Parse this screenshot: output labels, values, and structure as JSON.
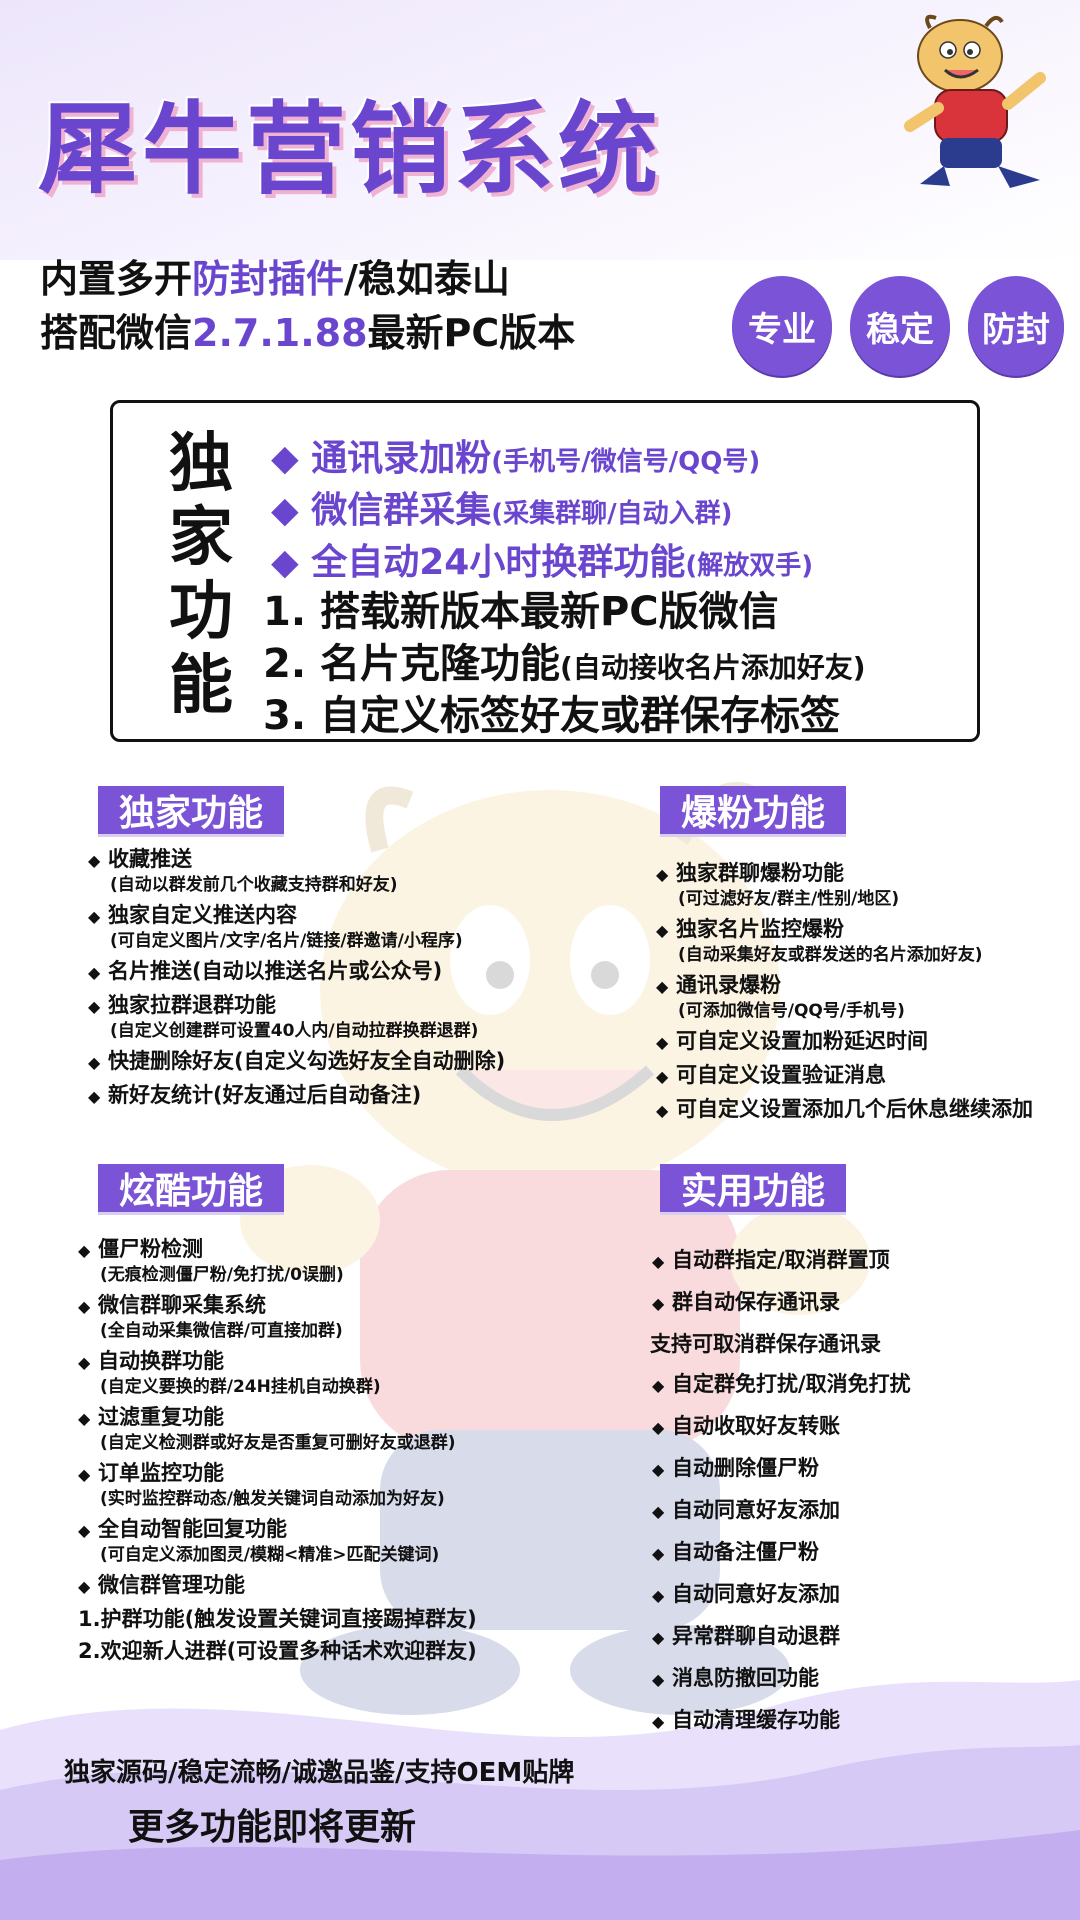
{
  "header": {
    "title": "犀牛营销系统",
    "line1_a": "内置多开",
    "line1_hl": "防封插件",
    "line1_b": "/稳如泰山",
    "line2_a": "搭配微信",
    "line2_hl": "2.7.1.88",
    "line2_b": "最新PC版本",
    "badges": [
      "专业",
      "稳定",
      "防封"
    ]
  },
  "exclusive_box": {
    "vertical_label": "独家功能",
    "purple_items": [
      {
        "main": "◆ 通讯录加粉",
        "note": "(手机号/微信号/QQ号)"
      },
      {
        "main": "◆ 微信群采集",
        "note": "(采集群聊/自动入群)"
      },
      {
        "main": "◆ 全自动24小时换群功能",
        "note": "(解放双手)"
      }
    ],
    "numbered_items": [
      {
        "main": "1. 搭载新版本最新PC版微信",
        "note": ""
      },
      {
        "main": "2. 名片克隆功能",
        "note": "(自动接收名片添加好友)"
      },
      {
        "main": "3. 自定义标签好友或群保存标签",
        "note": ""
      }
    ]
  },
  "sections": {
    "exclusive": {
      "title": "独家功能",
      "items": [
        {
          "main": "收藏推送",
          "note": "(自动以群发前几个收藏支持群和好友)"
        },
        {
          "main": "独家自定义推送内容",
          "note": "(可自定义图片/文字/名片/链接/群邀请/小程序)"
        },
        {
          "main": "名片推送(自动以推送名片或公众号)",
          "note": ""
        },
        {
          "main": "独家拉群退群功能",
          "note": "(自定义创建群可设置40人内/自动拉群换群退群)"
        },
        {
          "main": "快捷删除好友(自定义勾选好友全自动删除)",
          "note": ""
        },
        {
          "main": "新好友统计(好友通过后自动备注)",
          "note": ""
        }
      ]
    },
    "burst": {
      "title": "爆粉功能",
      "items": [
        {
          "main": "独家群聊爆粉功能",
          "note": "(可过滤好友/群主/性别/地区)"
        },
        {
          "main": "独家名片监控爆粉",
          "note": "(自动采集好友或群发送的名片添加好友)"
        },
        {
          "main": "通讯录爆粉",
          "note": "(可添加微信号/QQ号/手机号)"
        },
        {
          "main": "可自定义设置加粉延迟时间",
          "note": ""
        },
        {
          "main": "可自定义设置验证消息",
          "note": ""
        },
        {
          "main": "可自定义设置添加几个后休息继续添加",
          "note": ""
        }
      ]
    },
    "cool": {
      "title": "炫酷功能",
      "items": [
        {
          "main": "僵尸粉检测",
          "note": "(无痕检测僵尸粉/免打扰/0误删)"
        },
        {
          "main": "微信群聊采集系统",
          "note": "(全自动采集微信群/可直接加群)"
        },
        {
          "main": "自动换群功能",
          "note": "(自定义要换的群/24H挂机自动换群)"
        },
        {
          "main": "过滤重复功能",
          "note": "(自定义检测群或好友是否重复可删好友或退群)"
        },
        {
          "main": "订单监控功能",
          "note": "(实时监控群动态/触发关键词自动添加为好友)"
        },
        {
          "main": "全自动智能回复功能",
          "note": "(可自定义添加图灵/模糊<精准>匹配关键词)"
        },
        {
          "main": "微信群管理功能",
          "note": ""
        }
      ],
      "sub_items": [
        "1.护群功能(触发设置关键词直接踢掉群友)",
        "2.欢迎新人进群(可设置多种话术欢迎群友)"
      ]
    },
    "practical": {
      "title": "实用功能",
      "items": [
        "自动群指定/取消群置顶",
        "群自动保存通讯录",
        "支持可取消群保存通讯录",
        "自定群免打扰/取消免打扰",
        "自动收取好友转账",
        "自动删除僵尸粉",
        "自动同意好友添加",
        "自动备注僵尸粉",
        "自动同意好友添加",
        "异常群聊自动退群",
        "消息防撤回功能",
        "自动清理缓存功能"
      ]
    }
  },
  "footer": {
    "line1": "独家源码/稳定流畅/诚邀品鉴/支持OEM贴牌",
    "line2": "更多功能即将更新"
  },
  "colors": {
    "accent": "#7a53d6",
    "title": "#6a46cf",
    "text": "#111111"
  }
}
